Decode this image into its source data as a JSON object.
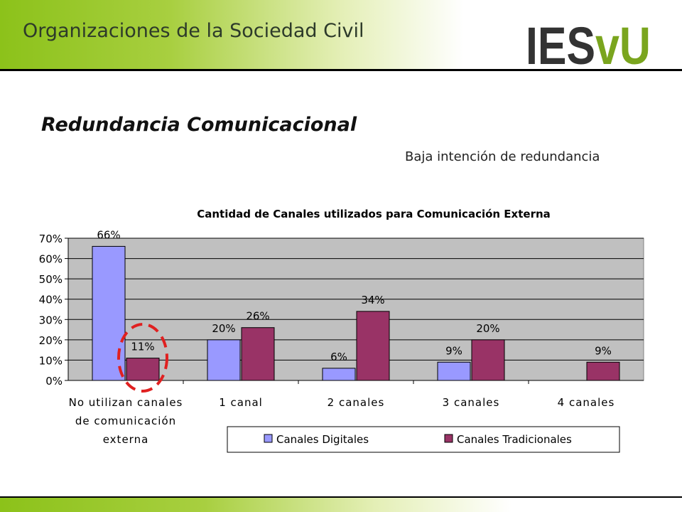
{
  "header": {
    "title": "Organizaciones de la Sociedad Civil"
  },
  "logo": {
    "text_left": "IES",
    "text_right": "vU",
    "colors": {
      "dark": "#333333",
      "green": "#7aa51e"
    }
  },
  "slide": {
    "title": "Redundancia Comunicacional",
    "subtitle": "Baja intención de redundancia"
  },
  "chart_data": {
    "type": "bar",
    "title": "Cantidad de Canales utilizados para Comunicación Externa",
    "categories": [
      [
        "No utilizan canales",
        "de comunicación",
        "externa"
      ],
      [
        "1 canal"
      ],
      [
        "2 canales"
      ],
      [
        "3 canales"
      ],
      [
        "4 canales"
      ]
    ],
    "series": [
      {
        "name": "Canales Digitales",
        "color": "#9999ff",
        "values": [
          66,
          20,
          6,
          9,
          null
        ]
      },
      {
        "name": "Canales Tradicionales",
        "color": "#993366",
        "values": [
          11,
          26,
          34,
          20,
          9
        ]
      }
    ],
    "data_labels": [
      [
        "66%",
        "20%",
        "6%",
        "9%",
        ""
      ],
      [
        "11%",
        "26%",
        "34%",
        "20%",
        "9%"
      ]
    ],
    "y_ticks": [
      "0%",
      "10%",
      "20%",
      "30%",
      "40%",
      "50%",
      "60%",
      "70%"
    ],
    "ylim": [
      0,
      70
    ],
    "grid": true,
    "plot_background": "#c0c0c0",
    "legend_position": "bottom",
    "highlight": {
      "category_index": 0,
      "series_index": 1,
      "style": "red-dashed-ellipse",
      "color": "#e02020"
    }
  }
}
